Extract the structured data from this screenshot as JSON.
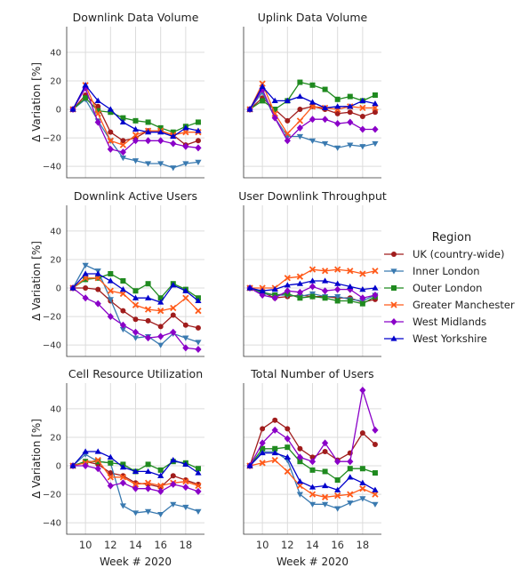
{
  "chart_data": {
    "type": "line",
    "x": [
      9,
      10,
      11,
      12,
      13,
      14,
      15,
      16,
      17,
      18,
      19
    ],
    "xlabel": "Week # 2020",
    "ylabel": "Δ Variation [%]",
    "ylim": [
      -48,
      58
    ],
    "xlim": [
      8.5,
      19.5
    ],
    "yticks": [
      40,
      20,
      0,
      -20,
      -40
    ],
    "xticks": [
      10,
      12,
      14,
      16,
      18
    ],
    "grid": true,
    "legend": {
      "title": "Region",
      "placement": "right",
      "entries": [
        {
          "name": "UK (country-wide)",
          "color": "#a01c1c",
          "marker": "circle"
        },
        {
          "name": "Inner London",
          "color": "#3a7ab0",
          "marker": "tri_down"
        },
        {
          "name": "Outer London",
          "color": "#1f8a1f",
          "marker": "square"
        },
        {
          "name": "Greater Manchester",
          "color": "#ff5a1a",
          "marker": "x"
        },
        {
          "name": "West Midlands",
          "color": "#8a00c8",
          "marker": "diamond"
        },
        {
          "name": "West Yorkshire",
          "color": "#0000cc",
          "marker": "tri_up"
        }
      ]
    },
    "panels": [
      {
        "title": "Downlink Data Volume",
        "series": [
          [
            0,
            10,
            2,
            -16,
            -22,
            -20,
            -15,
            -15,
            -18,
            -25,
            -22
          ],
          [
            0,
            7,
            -8,
            -22,
            -34,
            -36,
            -38,
            -38,
            -41,
            -38,
            -37
          ],
          [
            0,
            8,
            -1,
            -2,
            -6,
            -8,
            -9,
            -13,
            -16,
            -12,
            -9
          ],
          [
            0,
            17,
            -3,
            -22,
            -25,
            -18,
            -15,
            -15,
            -18,
            -16,
            -16
          ],
          [
            0,
            15,
            -9,
            -28,
            -30,
            -22,
            -22,
            -22,
            -24,
            -26,
            -27
          ],
          [
            0,
            17,
            6,
            0,
            -9,
            -14,
            -16,
            -16,
            -19,
            -13,
            -15
          ]
        ]
      },
      {
        "title": "Uplink Data Volume",
        "series": [
          [
            0,
            8,
            0,
            -8,
            0,
            2,
            0,
            -3,
            -2,
            -5,
            -2
          ],
          [
            0,
            12,
            -6,
            -19,
            -19,
            -22,
            -24,
            -27,
            -25,
            -26,
            -24
          ],
          [
            0,
            6,
            0,
            6,
            19,
            17,
            14,
            7,
            9,
            6,
            10
          ],
          [
            0,
            18,
            -3,
            -17,
            -8,
            2,
            1,
            0,
            2,
            1,
            1
          ],
          [
            0,
            14,
            -6,
            -22,
            -13,
            -7,
            -7,
            -10,
            -9,
            -14,
            -14
          ],
          [
            0,
            16,
            6,
            6,
            9,
            5,
            1,
            2,
            2,
            6,
            4
          ]
        ]
      },
      {
        "title": "Downlink Active Users",
        "series": [
          [
            0,
            0,
            -1,
            -9,
            -16,
            -22,
            -23,
            -27,
            -19,
            -26,
            -28
          ],
          [
            0,
            16,
            12,
            -8,
            -29,
            -35,
            -34,
            -40,
            -32,
            -35,
            -38
          ],
          [
            0,
            6,
            7,
            10,
            5,
            -2,
            3,
            -7,
            3,
            -1,
            -7
          ],
          [
            0,
            7,
            7,
            -2,
            -4,
            -12,
            -15,
            -16,
            -14,
            -7,
            -16
          ],
          [
            0,
            -7,
            -11,
            -20,
            -26,
            -31,
            -35,
            -34,
            -31,
            -42,
            -43
          ],
          [
            0,
            10,
            10,
            5,
            -1,
            -7,
            -7,
            -10,
            2,
            -2,
            -9
          ]
        ]
      },
      {
        "title": "User Downlink Throughput",
        "series": [
          [
            0,
            -3,
            -7,
            -6,
            -5,
            -6,
            -6,
            -7,
            -7,
            -10,
            -8
          ],
          [
            0,
            -4,
            -5,
            -5,
            -6,
            -4,
            -6,
            -6,
            -8,
            -9,
            -5
          ],
          [
            0,
            -3,
            -5,
            -4,
            -7,
            -6,
            -7,
            -9,
            -9,
            -11,
            -6
          ],
          [
            0,
            0,
            0,
            7,
            8,
            13,
            12,
            13,
            12,
            10,
            12
          ],
          [
            0,
            -5,
            -7,
            -2,
            -3,
            1,
            -2,
            -1,
            -1,
            -7,
            -5
          ],
          [
            0,
            -2,
            -1,
            2,
            3,
            5,
            5,
            3,
            1,
            -1,
            0
          ]
        ]
      },
      {
        "title": "Cell Resource Utilization",
        "series": [
          [
            0,
            3,
            1,
            -5,
            -7,
            -12,
            -13,
            -15,
            -7,
            -10,
            -13
          ],
          [
            0,
            8,
            3,
            2,
            -28,
            -33,
            -32,
            -34,
            -27,
            -29,
            -32
          ],
          [
            0,
            3,
            3,
            2,
            1,
            -4,
            1,
            -3,
            3,
            2,
            -2
          ],
          [
            0,
            2,
            4,
            -8,
            -8,
            -13,
            -12,
            -14,
            -12,
            -11,
            -14
          ],
          [
            0,
            0,
            -2,
            -14,
            -12,
            -16,
            -16,
            -18,
            -13,
            -15,
            -18
          ],
          [
            0,
            10,
            10,
            6,
            -1,
            -4,
            -4,
            -7,
            4,
            1,
            -5
          ]
        ]
      },
      {
        "title": "Total Number of Users",
        "series": [
          [
            0,
            26,
            32,
            26,
            12,
            6,
            10,
            4,
            9,
            23,
            15
          ],
          [
            0,
            10,
            10,
            4,
            -20,
            -27,
            -27,
            -30,
            -26,
            -23,
            -27
          ],
          [
            0,
            12,
            12,
            13,
            3,
            -3,
            -4,
            -10,
            -2,
            -2,
            -5
          ],
          [
            0,
            2,
            4,
            -4,
            -14,
            -20,
            -22,
            -21,
            -20,
            -16,
            -20
          ],
          [
            0,
            16,
            25,
            19,
            6,
            3,
            16,
            3,
            3,
            53,
            25
          ],
          [
            0,
            9,
            9,
            6,
            -11,
            -15,
            -14,
            -17,
            -8,
            -12,
            -17
          ]
        ]
      }
    ]
  }
}
